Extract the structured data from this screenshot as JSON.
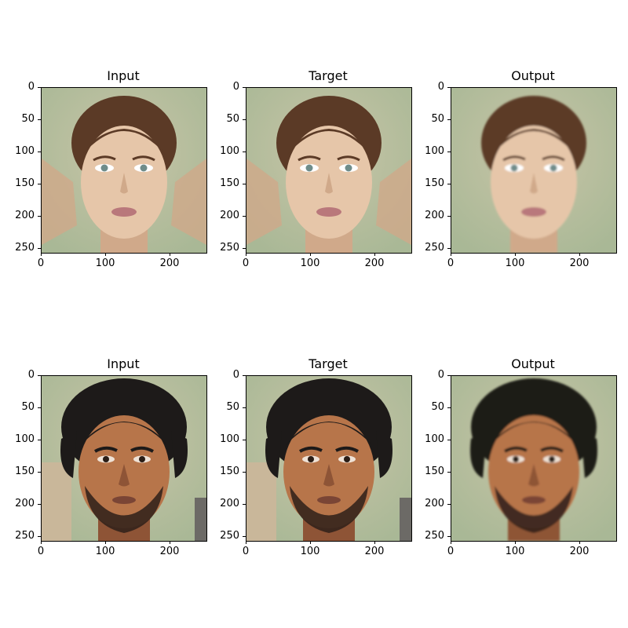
{
  "figure": {
    "rows": [
      {
        "subject": "woman",
        "panels": [
          {
            "title": "Input"
          },
          {
            "title": "Target"
          },
          {
            "title": "Output"
          }
        ],
        "palette": {
          "bg": "#c8c5a7",
          "bg2": "#a9b896",
          "hair": "#5b3a26",
          "skin": "#e6c6a9",
          "skin_shade": "#d0a98a",
          "lips": "#b9787b",
          "eye": "#6f8c8a"
        }
      },
      {
        "subject": "man",
        "panels": [
          {
            "title": "Input"
          },
          {
            "title": "Target"
          },
          {
            "title": "Output"
          }
        ],
        "palette": {
          "bg": "#eeeff5",
          "bg2": "#c9b79a",
          "hair": "#1d1a19",
          "skin": "#b7754a",
          "skin_shade": "#8e5436",
          "lips": "#7a4535",
          "eye": "#2a1d16"
        }
      }
    ],
    "axis": {
      "y_ticks": [
        "0",
        "50",
        "100",
        "150",
        "200",
        "250"
      ],
      "x_ticks": [
        "0",
        "100",
        "200"
      ]
    }
  }
}
